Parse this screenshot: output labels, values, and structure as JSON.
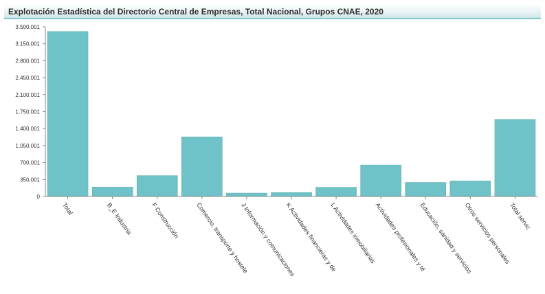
{
  "title": "Explotación Estadística del Directorio Central de Empresas, Total Nacional, Grupos CNAE, 2020",
  "colors": {
    "bar": "#6fc2c7",
    "bar_stroke": "#5aa9ae",
    "axis": "#888888",
    "title_border": "#7fc7cd"
  },
  "chart_data": {
    "type": "bar",
    "title": "Explotación Estadística del Directorio Central de Empresas, Total Nacional, Grupos CNAE, 2020",
    "xlabel": "",
    "ylabel": "",
    "ylim": [
      0,
      3500001
    ],
    "y_ticks": [
      0,
      350001,
      700001,
      1050001,
      1400001,
      1750001,
      2100001,
      2450001,
      2800001,
      3150001,
      3500001
    ],
    "y_tick_labels": [
      "0",
      "350.001",
      "700.001",
      "1.050.001",
      "1.400.001",
      "1.750.001",
      "2.100.001",
      "2.450.001",
      "2.800.001",
      "3.150.001",
      "3.500.001"
    ],
    "categories": [
      "Total",
      "B_E Industria",
      "F Construcción",
      "Comercio, transporte y hostele",
      "J Información y comunicaciones",
      "K Actividades financieras y de",
      "L Actividades inmobiliarias",
      "Actividades profesionales y té",
      "Educación, sanidad y servicios",
      "Otros servicios personales",
      "Total servic"
    ],
    "values": [
      3404428,
      195000,
      430000,
      1230000,
      70000,
      80000,
      190000,
      650000,
      290000,
      320000,
      1590000
    ],
    "grid": false,
    "legend": "none"
  }
}
